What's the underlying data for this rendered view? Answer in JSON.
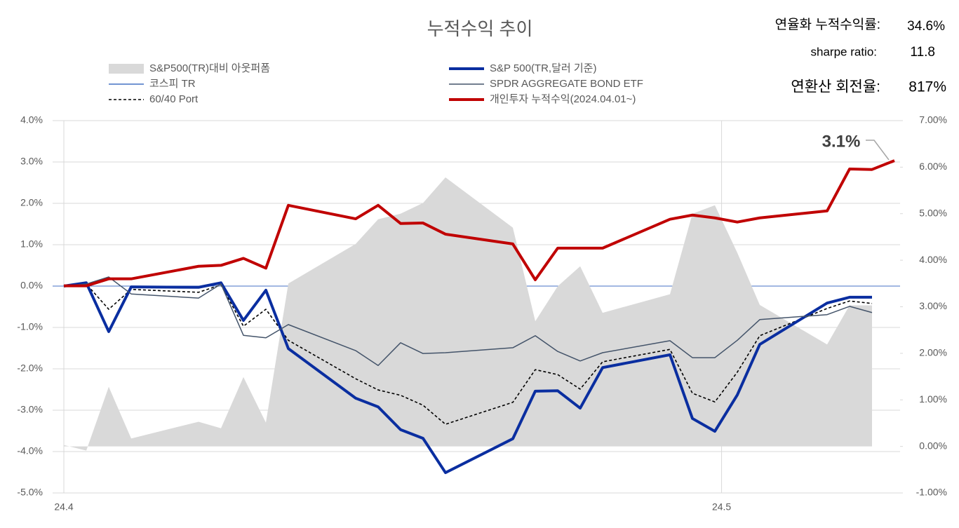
{
  "chart_data": {
    "type": "line",
    "title": "누적수익 추이",
    "x": [
      0,
      1,
      2,
      3,
      6,
      7,
      8,
      9,
      10,
      13,
      14,
      15,
      16,
      17,
      20,
      21,
      22,
      23,
      24,
      27,
      28,
      29,
      30,
      31,
      34,
      35,
      36,
      37
    ],
    "xlim": [
      -0.5,
      37.25
    ],
    "xticks": [
      {
        "value": 0,
        "label": "24.4"
      },
      {
        "value": 29.3,
        "label": "24.5"
      }
    ],
    "ylim": [
      -5,
      4
    ],
    "yticks": [
      {
        "value": 4,
        "label": "4.0%"
      },
      {
        "value": 3,
        "label": "3.0%"
      },
      {
        "value": 2,
        "label": "2.0%"
      },
      {
        "value": 1,
        "label": "1.0%"
      },
      {
        "value": 0,
        "label": "0.0%"
      },
      {
        "value": -1,
        "label": "-1.0%"
      },
      {
        "value": -2,
        "label": "-2.0%"
      },
      {
        "value": -3,
        "label": "-3.0%"
      },
      {
        "value": -4,
        "label": "-4.0%"
      },
      {
        "value": -5,
        "label": "-5.0%"
      }
    ],
    "y2lim": [
      -1,
      7
    ],
    "y2ticks": [
      {
        "value": 7,
        "label": "7.00%"
      },
      {
        "value": 6,
        "label": "6.00%"
      },
      {
        "value": 5,
        "label": "5.00%"
      },
      {
        "value": 4,
        "label": "4.00%"
      },
      {
        "value": 3,
        "label": "3.00%"
      },
      {
        "value": 2,
        "label": "2.00%"
      },
      {
        "value": 1,
        "label": "1.00%"
      },
      {
        "value": 0,
        "label": "0.00%"
      },
      {
        "value": -1,
        "label": "-1.00%"
      }
    ],
    "grid": true,
    "series": [
      {
        "name": "S&P500(TR)대비 아웃퍼폼",
        "kind": "area",
        "axis": "y2",
        "color": "#d9d9d9",
        "values": [
          0.03,
          -0.09,
          1.28,
          0.17,
          0.53,
          0.39,
          1.49,
          0.51,
          3.5,
          4.35,
          4.88,
          5.0,
          5.23,
          5.78,
          4.7,
          2.69,
          3.44,
          3.87,
          2.87,
          3.27,
          5.0,
          5.18,
          4.16,
          3.04,
          2.19,
          3.03,
          3.03,
          null
        ]
      },
      {
        "name": "코스피 TR",
        "kind": "line",
        "color": "#4472c4",
        "values": [
          null,
          null,
          null,
          null,
          null,
          null,
          null,
          null,
          null,
          null,
          null,
          null,
          null,
          null,
          null,
          null,
          null,
          null,
          null,
          null,
          null,
          null,
          null,
          null,
          null,
          null,
          null,
          null
        ]
      },
      {
        "name": "60/40 Port",
        "kind": "dash",
        "color": "#000000",
        "values": [
          0,
          0.05,
          -0.56,
          -0.08,
          -0.15,
          0.03,
          -0.97,
          -0.56,
          -1.31,
          -2.24,
          -2.51,
          -2.64,
          -2.88,
          -3.34,
          -2.81,
          -2.02,
          -2.14,
          -2.49,
          -1.83,
          -1.53,
          -2.59,
          -2.8,
          -2.08,
          -1.2,
          -0.54,
          -0.36,
          -0.42,
          null
        ]
      },
      {
        "name": "S&P 500(TR,달러 기준)",
        "kind": "thick",
        "color": "#0a2ea0",
        "values": [
          0,
          0.08,
          -1.1,
          -0.02,
          -0.03,
          0.08,
          -0.83,
          -0.1,
          -1.51,
          -2.71,
          -2.92,
          -3.47,
          -3.68,
          -4.51,
          -3.69,
          -2.54,
          -2.53,
          -2.95,
          -1.97,
          -1.66,
          -3.2,
          -3.51,
          -2.63,
          -1.41,
          -0.41,
          -0.27,
          -0.27,
          null
        ]
      },
      {
        "name": "SPDR AGGREGATE BOND ETF",
        "kind": "line",
        "color": "#44546a",
        "values": [
          0,
          0.05,
          0.22,
          -0.19,
          -0.29,
          0.05,
          -1.19,
          -1.25,
          -0.93,
          -1.56,
          -1.92,
          -1.37,
          -1.63,
          -1.61,
          -1.49,
          -1.2,
          -1.58,
          -1.81,
          -1.61,
          -1.32,
          -1.73,
          -1.73,
          -1.31,
          -0.81,
          -0.69,
          -0.49,
          -0.64,
          null
        ]
      },
      {
        "name": "개인투자 누적수익(2024.04.01~)",
        "kind": "thick",
        "axis": "y2",
        "color": "#c00000",
        "values": [
          3.45,
          3.45,
          3.6,
          3.6,
          3.87,
          3.89,
          4.04,
          3.83,
          5.18,
          4.89,
          5.18,
          4.79,
          4.8,
          4.56,
          4.35,
          3.58,
          4.26,
          4.26,
          4.26,
          4.88,
          4.97,
          4.91,
          4.82,
          4.91,
          5.06,
          5.96,
          5.95,
          6.14
        ]
      }
    ],
    "annotations": [
      {
        "text": "3.1%"
      }
    ],
    "stats": [
      {
        "label": "연율화 누적수익률:",
        "value": "34.6%"
      },
      {
        "label": "sharpe ratio:",
        "value": "11.8"
      },
      {
        "label": "연환산 회전율:",
        "value": "817%"
      }
    ]
  }
}
